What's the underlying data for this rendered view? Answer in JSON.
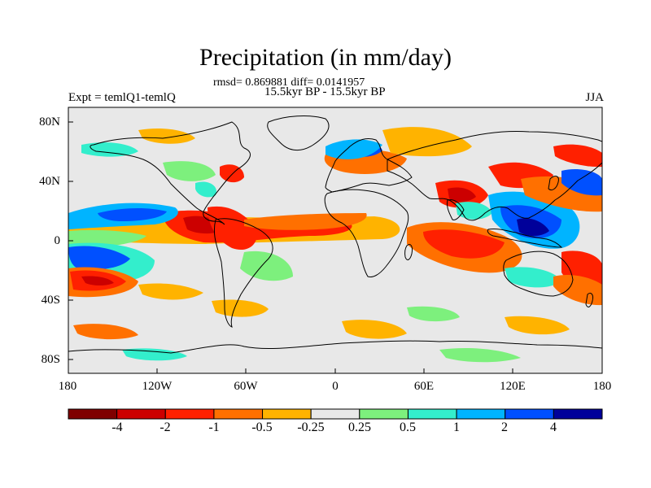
{
  "header": {
    "title": "Precipitation (in mm/day)",
    "stats": "rmsd= 0.869881 diff= 0.0141957",
    "period": "15.5kyr BP - 15.5kyr BP",
    "experiment": "Expt = temlQ1-temlQ",
    "season": "JJA"
  },
  "axes": {
    "y_labels": [
      "80N",
      "40N",
      "0",
      "40S",
      "80S"
    ],
    "x_labels": [
      "180",
      "120W",
      "60W",
      "0",
      "60E",
      "120E",
      "180"
    ]
  },
  "colorbar": {
    "colors": [
      "#7f0000",
      "#cc0000",
      "#ff2000",
      "#ff7000",
      "#ffb300",
      "#e8e8e8",
      "#7df07d",
      "#33eecc",
      "#00b4ff",
      "#0050ff",
      "#00009a"
    ],
    "labels": [
      "-4",
      "-2",
      "-1",
      "-0.5",
      "-0.25",
      "0.25",
      "0.5",
      "1",
      "2",
      "4"
    ]
  },
  "map": {
    "background_color": "#e8e8e8",
    "coast_color": "#000000"
  }
}
